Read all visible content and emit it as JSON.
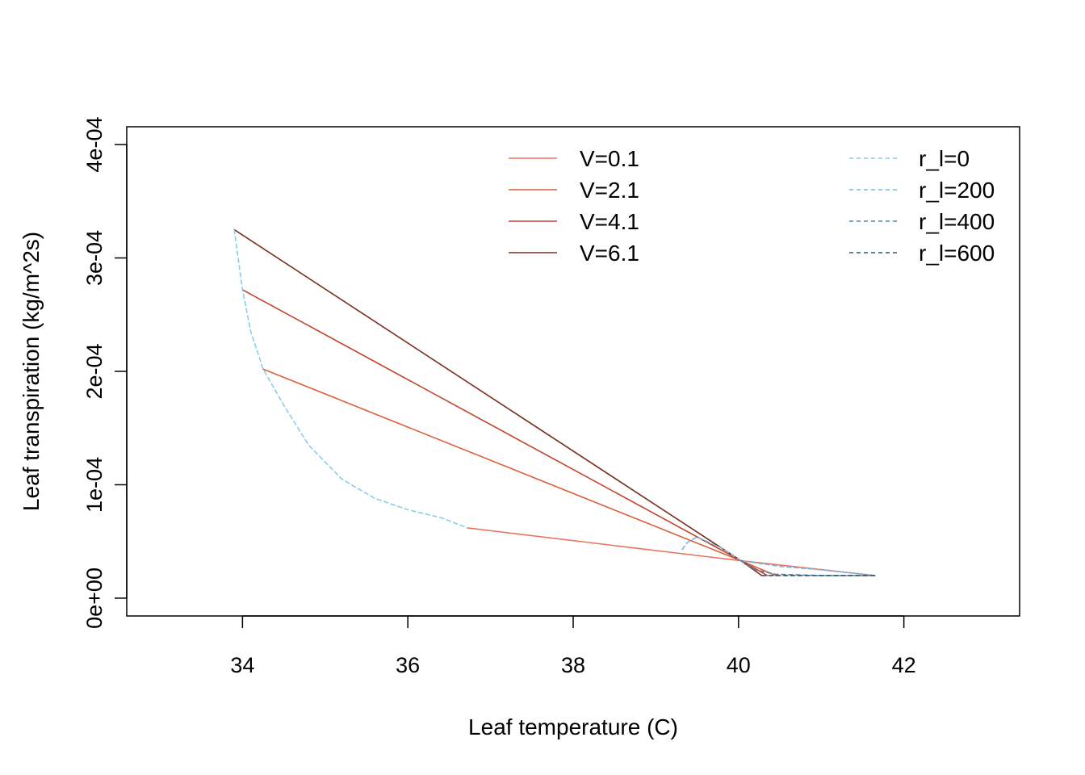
{
  "chart_data": {
    "type": "line",
    "title": "",
    "xlabel": "Leaf temperature (C)",
    "ylabel": "Leaf transpiration (kg/m^2s)",
    "xlim": [
      32.6,
      43.4
    ],
    "ylim": [
      -1.57e-05,
      0.0004157
    ],
    "x_ticks": [
      34,
      36,
      38,
      40,
      42
    ],
    "x_tick_labels": [
      "34",
      "36",
      "38",
      "40",
      "42"
    ],
    "y_ticks": [
      0,
      0.0001,
      0.0002,
      0.0003,
      0.0004
    ],
    "y_tick_labels": [
      "0e+00",
      "1e-04",
      "2e-04",
      "3e-04",
      "4e-04"
    ],
    "grid": false,
    "series": [
      {
        "name": "V=0.1",
        "style": "solid",
        "color": "#E8735C",
        "x": [
          36.72,
          40.03,
          41.65
        ],
        "y": [
          6.2e-05,
          3.3e-05,
          2e-05
        ]
      },
      {
        "name": "V=2.1",
        "style": "solid",
        "color": "#D9603B",
        "x": [
          34.25,
          40.03,
          40.45
        ],
        "y": [
          0.000202,
          3.3e-05,
          2e-05
        ]
      },
      {
        "name": "V=4.1",
        "style": "solid",
        "color": "#C2452D",
        "x": [
          34.0,
          40.03,
          40.35
        ],
        "y": [
          0.000272,
          3.3e-05,
          2e-05
        ]
      },
      {
        "name": "V=6.1",
        "style": "solid",
        "color": "#7A2E1E",
        "x": [
          33.9,
          40.03,
          40.28
        ],
        "y": [
          0.000325,
          3.3e-05,
          2e-05
        ]
      },
      {
        "name": "r_l=0",
        "style": "dashed",
        "color": "#87CEEB",
        "x": [
          33.9,
          34.0,
          34.1,
          34.25,
          34.5,
          34.8,
          35.2,
          35.6,
          36.0,
          36.4,
          36.72
        ],
        "y": [
          0.000325,
          0.000272,
          0.000235,
          0.000202,
          0.00017,
          0.000135,
          0.000105,
          8.8e-05,
          7.8e-05,
          7.1e-05,
          6.2e-05
        ]
      },
      {
        "name": "r_l=200",
        "style": "dashed",
        "color": "#79B8DA",
        "x": [
          39.32,
          39.38,
          39.5,
          39.8,
          40.03,
          40.5,
          41.0,
          41.65
        ],
        "y": [
          4.3e-05,
          4.9e-05,
          5.4e-05,
          4.4e-05,
          3.3e-05,
          2.8e-05,
          2.5e-05,
          2e-05
        ]
      },
      {
        "name": "r_l=400",
        "style": "dashed",
        "color": "#4C88AD",
        "x": [
          40.03,
          40.2,
          40.45,
          41.0,
          41.65
        ],
        "y": [
          3.3e-05,
          2.5e-05,
          2.1e-05,
          2e-05,
          2e-05
        ]
      },
      {
        "name": "r_l=600",
        "style": "dashed",
        "color": "#34546B",
        "x": [
          40.28,
          40.6,
          41.2,
          41.65
        ],
        "y": [
          2e-05,
          2e-05,
          2e-05,
          2e-05
        ]
      }
    ],
    "legends": [
      {
        "placement": "top-center",
        "entries": [
          {
            "label": "V=0.1",
            "color": "#E8735C",
            "style": "solid"
          },
          {
            "label": "V=2.1",
            "color": "#D9603B",
            "style": "solid"
          },
          {
            "label": "V=4.1",
            "color": "#C2452D",
            "style": "solid"
          },
          {
            "label": "V=6.1",
            "color": "#7A2E1E",
            "style": "solid"
          }
        ]
      },
      {
        "placement": "top-right",
        "entries": [
          {
            "label": "r_l=0",
            "color": "#87CEEB",
            "style": "dashed"
          },
          {
            "label": "r_l=200",
            "color": "#79B8DA",
            "style": "dashed"
          },
          {
            "label": "r_l=400",
            "color": "#4C88AD",
            "style": "dashed"
          },
          {
            "label": "r_l=600",
            "color": "#34546B",
            "style": "dashed"
          }
        ]
      }
    ]
  }
}
